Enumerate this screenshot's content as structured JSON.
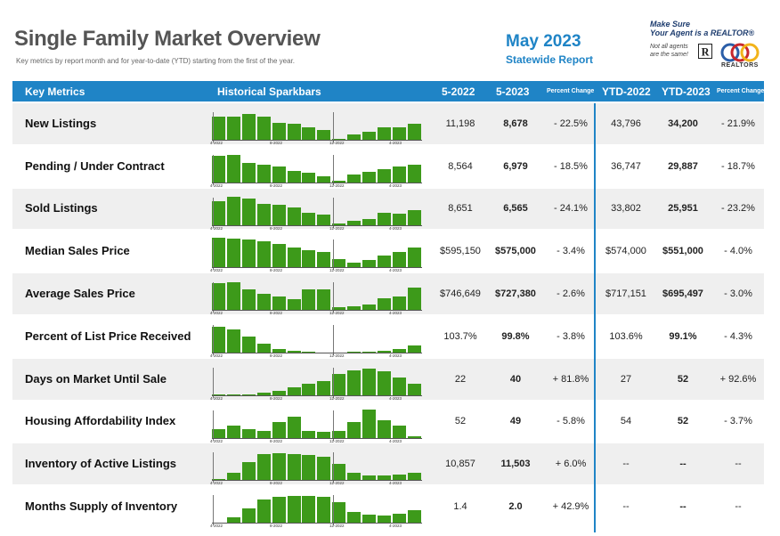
{
  "header": {
    "title": "Single Family Market Overview",
    "subtitle": "Key metrics by report month and for year-to-date (YTD) starting from the first of the year.",
    "report_month": "May 2023",
    "report_scope": "Statewide Report"
  },
  "branding": {
    "tagline_line1": "Make Sure",
    "tagline_line2": "Your Agent is a REALTOR®",
    "note_line1": "Not all agents",
    "note_line2": "are the same!",
    "association_label": "REALTORS"
  },
  "columns": {
    "metric": "Key Metrics",
    "sparkbars": "Historical Sparkbars",
    "prior": "5-2022",
    "current": "5-2023",
    "change": "Percent Change",
    "ytd_prior": "YTD-2022",
    "ytd_current": "YTD-2023",
    "ytd_change": "Percent Change"
  },
  "spark_labels": [
    "4-2022",
    "8-2022",
    "12-2022",
    "4-2023"
  ],
  "rows": [
    {
      "name": "New Listings",
      "prior": "11,198",
      "current": "8,678",
      "change": "- 22.5%",
      "ytd_prior": "43,796",
      "ytd_current": "34,200",
      "ytd_change": "- 21.9%",
      "spark": [
        0.78,
        0.8,
        0.88,
        0.8,
        0.6,
        0.55,
        0.45,
        0.36,
        0.05,
        0.22,
        0.28,
        0.45,
        0.45,
        0.55
      ]
    },
    {
      "name": "Pending / Under Contract",
      "prior": "8,564",
      "current": "6,979",
      "change": "- 18.5%",
      "ytd_prior": "36,747",
      "ytd_current": "29,887",
      "ytd_change": "- 18.7%",
      "spark": [
        0.92,
        0.95,
        0.68,
        0.6,
        0.55,
        0.42,
        0.35,
        0.24,
        0.08,
        0.3,
        0.38,
        0.46,
        0.55,
        0.6
      ]
    },
    {
      "name": "Sold Listings",
      "prior": "8,651",
      "current": "6,565",
      "change": "- 24.1%",
      "ytd_prior": "33,802",
      "ytd_current": "25,951",
      "ytd_change": "- 23.2%",
      "spark": [
        0.82,
        0.95,
        0.9,
        0.72,
        0.7,
        0.6,
        0.42,
        0.36,
        0.08,
        0.16,
        0.22,
        0.42,
        0.4,
        0.52
      ]
    },
    {
      "name": "Median Sales Price",
      "prior": "$595,150",
      "current": "$575,000",
      "change": "- 3.4%",
      "ytd_prior": "$574,000",
      "ytd_current": "$551,000",
      "ytd_change": "- 4.0%",
      "spark": [
        1.0,
        0.98,
        0.95,
        0.9,
        0.8,
        0.68,
        0.6,
        0.54,
        0.3,
        0.2,
        0.28,
        0.42,
        0.55,
        0.68
      ]
    },
    {
      "name": "Average Sales Price",
      "prior": "$746,649",
      "current": "$727,380",
      "change": "- 2.6%",
      "ytd_prior": "$717,151",
      "ytd_current": "$695,497",
      "ytd_change": "- 3.0%",
      "spark": [
        0.92,
        0.94,
        0.72,
        0.56,
        0.48,
        0.38,
        0.7,
        0.7,
        0.12,
        0.14,
        0.2,
        0.42,
        0.48,
        0.78
      ]
    },
    {
      "name": "Percent of List Price Received",
      "prior": "103.7%",
      "current": "99.8%",
      "change": "- 3.8%",
      "ytd_prior": "103.6%",
      "ytd_current": "99.1%",
      "ytd_change": "- 4.3%",
      "spark": [
        0.88,
        0.78,
        0.56,
        0.32,
        0.14,
        0.1,
        0.06,
        0.04,
        0.03,
        0.05,
        0.07,
        0.1,
        0.16,
        0.26
      ]
    },
    {
      "name": "Days on Market Until Sale",
      "prior": "22",
      "current": "40",
      "change": "+ 81.8%",
      "ytd_prior": "27",
      "ytd_current": "52",
      "ytd_change": "+ 92.6%",
      "spark": [
        0.05,
        0.05,
        0.06,
        0.1,
        0.18,
        0.3,
        0.4,
        0.48,
        0.72,
        0.86,
        0.9,
        0.82,
        0.6,
        0.42
      ]
    },
    {
      "name": "Housing Affordability Index",
      "prior": "52",
      "current": "49",
      "change": "- 5.8%",
      "ytd_prior": "54",
      "ytd_current": "52",
      "ytd_change": "- 3.7%",
      "spark": [
        0.3,
        0.42,
        0.3,
        0.24,
        0.55,
        0.72,
        0.24,
        0.22,
        0.26,
        0.55,
        0.95,
        0.62,
        0.42,
        0.08
      ]
    },
    {
      "name": "Inventory of Active Listings",
      "prior": "10,857",
      "current": "11,503",
      "change": "+ 6.0%",
      "ytd_prior": "--",
      "ytd_current": "--",
      "ytd_change": "--",
      "spark": [
        0.08,
        0.28,
        0.62,
        0.88,
        0.92,
        0.9,
        0.86,
        0.82,
        0.58,
        0.28,
        0.2,
        0.2,
        0.22,
        0.28
      ]
    },
    {
      "name": "Months Supply of Inventory",
      "prior": "1.4",
      "current": "2.0",
      "change": "+ 42.9%",
      "ytd_prior": "--",
      "ytd_current": "--",
      "ytd_change": "--",
      "spark": [
        0.04,
        0.2,
        0.52,
        0.8,
        0.88,
        0.92,
        0.92,
        0.9,
        0.72,
        0.4,
        0.3,
        0.28,
        0.34,
        0.44
      ]
    }
  ],
  "colors": {
    "accent": "#1f84c6",
    "bar": "#3d9a1a",
    "row_shade": "#efefef"
  }
}
